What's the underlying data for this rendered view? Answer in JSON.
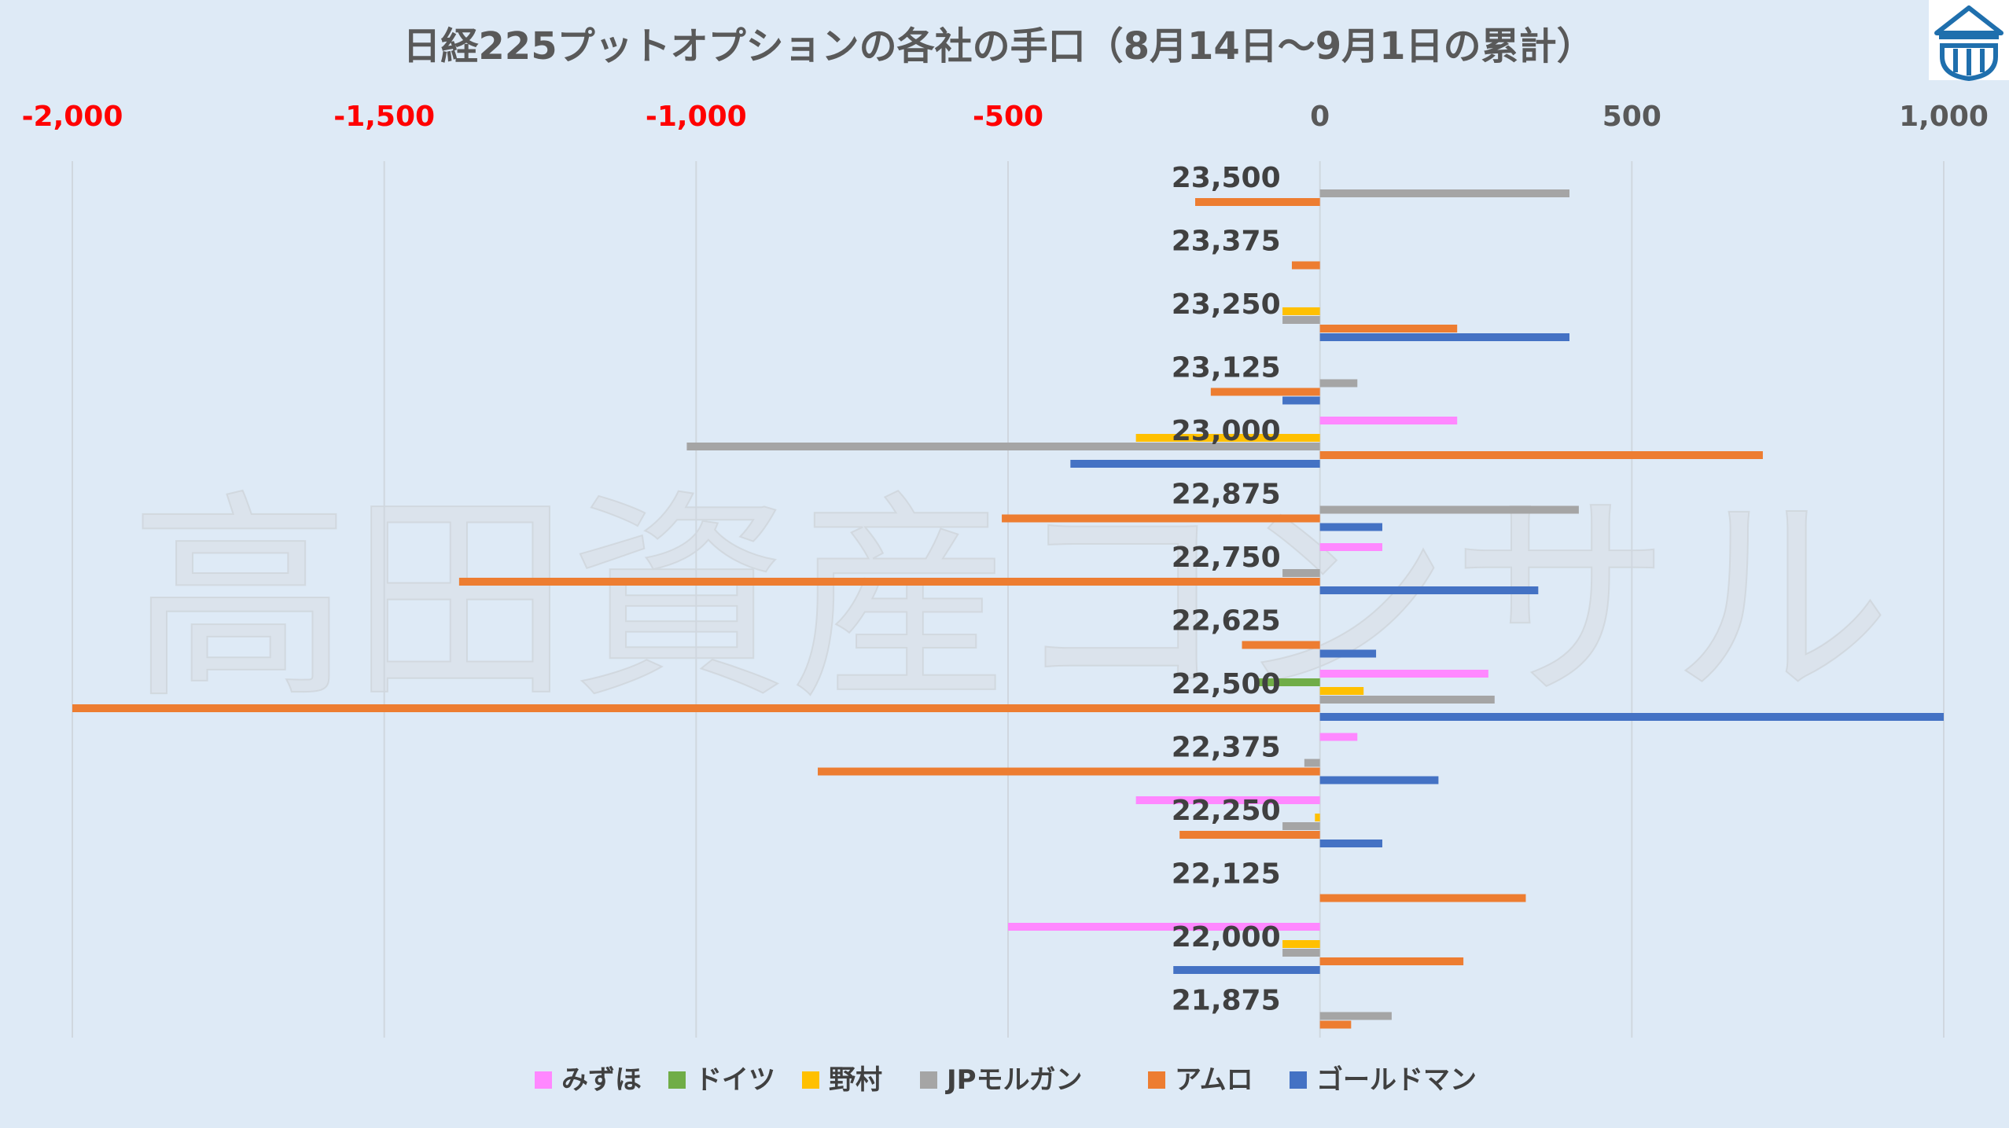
{
  "title": "日経225プットオプションの各社の手口（8月14日～9月1日の累計）",
  "watermark": "高田資産コンサル",
  "colors": {
    "background": "#deeaf6",
    "gridline": "#d0d7df",
    "negative_tick": "#ff0000",
    "logo": "#1f6fad"
  },
  "logo_icon": "building-shield-icon",
  "chart_data": {
    "type": "bar",
    "orientation": "horizontal",
    "xlim": [
      -2000,
      1000
    ],
    "x_ticks": [
      -2000,
      -1500,
      -1000,
      -500,
      0,
      500,
      1000
    ],
    "x_tick_labels": [
      "-2,000",
      "-1,500",
      "-1,000",
      "-500",
      "0",
      "500",
      "1,000"
    ],
    "x_axis_position": "top",
    "grid": true,
    "legend_position": "bottom",
    "categories": [
      "23,500",
      "23,375",
      "23,250",
      "23,125",
      "23,000",
      "22,875",
      "22,750",
      "22,625",
      "22,500",
      "22,375",
      "22,250",
      "22,125",
      "22,000",
      "21,875"
    ],
    "series": [
      {
        "name": "みずほ",
        "color": "#ff88ff",
        "values": [
          0,
          0,
          0,
          0,
          220,
          0,
          100,
          0,
          270,
          60,
          -295,
          0,
          -500,
          0
        ]
      },
      {
        "name": "ドイツ",
        "color": "#70ad47",
        "values": [
          0,
          0,
          0,
          0,
          0,
          0,
          0,
          0,
          -100,
          0,
          0,
          0,
          0,
          0
        ]
      },
      {
        "name": "野村",
        "color": "#ffc000",
        "values": [
          0,
          0,
          -60,
          0,
          -295,
          0,
          0,
          0,
          70,
          0,
          -8,
          0,
          -60,
          0
        ]
      },
      {
        "name": "JPモルガン",
        "color": "#a5a5a5",
        "values": [
          400,
          0,
          -60,
          60,
          -1015,
          415,
          -60,
          0,
          280,
          -25,
          -60,
          0,
          -60,
          115
        ]
      },
      {
        "name": "アムロ",
        "color": "#ed7d31",
        "values": [
          -200,
          -45,
          220,
          -175,
          710,
          -510,
          -1380,
          -125,
          -2000,
          -805,
          -225,
          330,
          230,
          50
        ]
      },
      {
        "name": "ゴールドマン",
        "color": "#4472c4",
        "values": [
          0,
          0,
          400,
          -60,
          -400,
          100,
          350,
          90,
          1000,
          190,
          100,
          0,
          -235,
          0
        ]
      }
    ]
  }
}
